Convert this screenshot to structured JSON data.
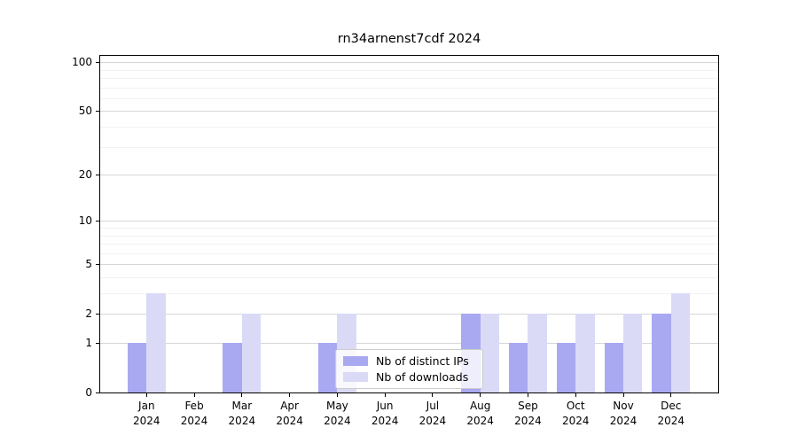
{
  "chart_data": {
    "type": "bar",
    "title": "rn34arnenst7cdf 2024",
    "categories": [
      "Jan",
      "Feb",
      "Mar",
      "Apr",
      "May",
      "Jun",
      "Jul",
      "Aug",
      "Sep",
      "Oct",
      "Nov",
      "Dec"
    ],
    "x_tick_year": "2024",
    "series": [
      {
        "name": "Nb of distinct IPs",
        "color": "#a9a9f1",
        "values": [
          1,
          0,
          1,
          0,
          1,
          0,
          0,
          2,
          1,
          1,
          1,
          2
        ]
      },
      {
        "name": "Nb of downloads",
        "color": "#dadaf7",
        "values": [
          3,
          0,
          2,
          0,
          2,
          0,
          0,
          2,
          2,
          2,
          2,
          3
        ]
      }
    ],
    "y_axis": {
      "scale": "log1p",
      "tick_labels": [
        0,
        1,
        2,
        5,
        10,
        20,
        50,
        100
      ],
      "major_gridlines": [
        1,
        2,
        5,
        10,
        20,
        50,
        100
      ],
      "minor_gridlines": [
        3,
        4,
        6,
        7,
        8,
        9,
        30,
        40,
        60,
        70,
        80,
        90
      ],
      "range": [
        0,
        111
      ]
    },
    "legend_position": "lower center",
    "colors": {
      "axis": "#000000",
      "major_grid": "#d6d6d6",
      "minor_grid": "#f2f2f2",
      "background": "#ffffff"
    }
  }
}
